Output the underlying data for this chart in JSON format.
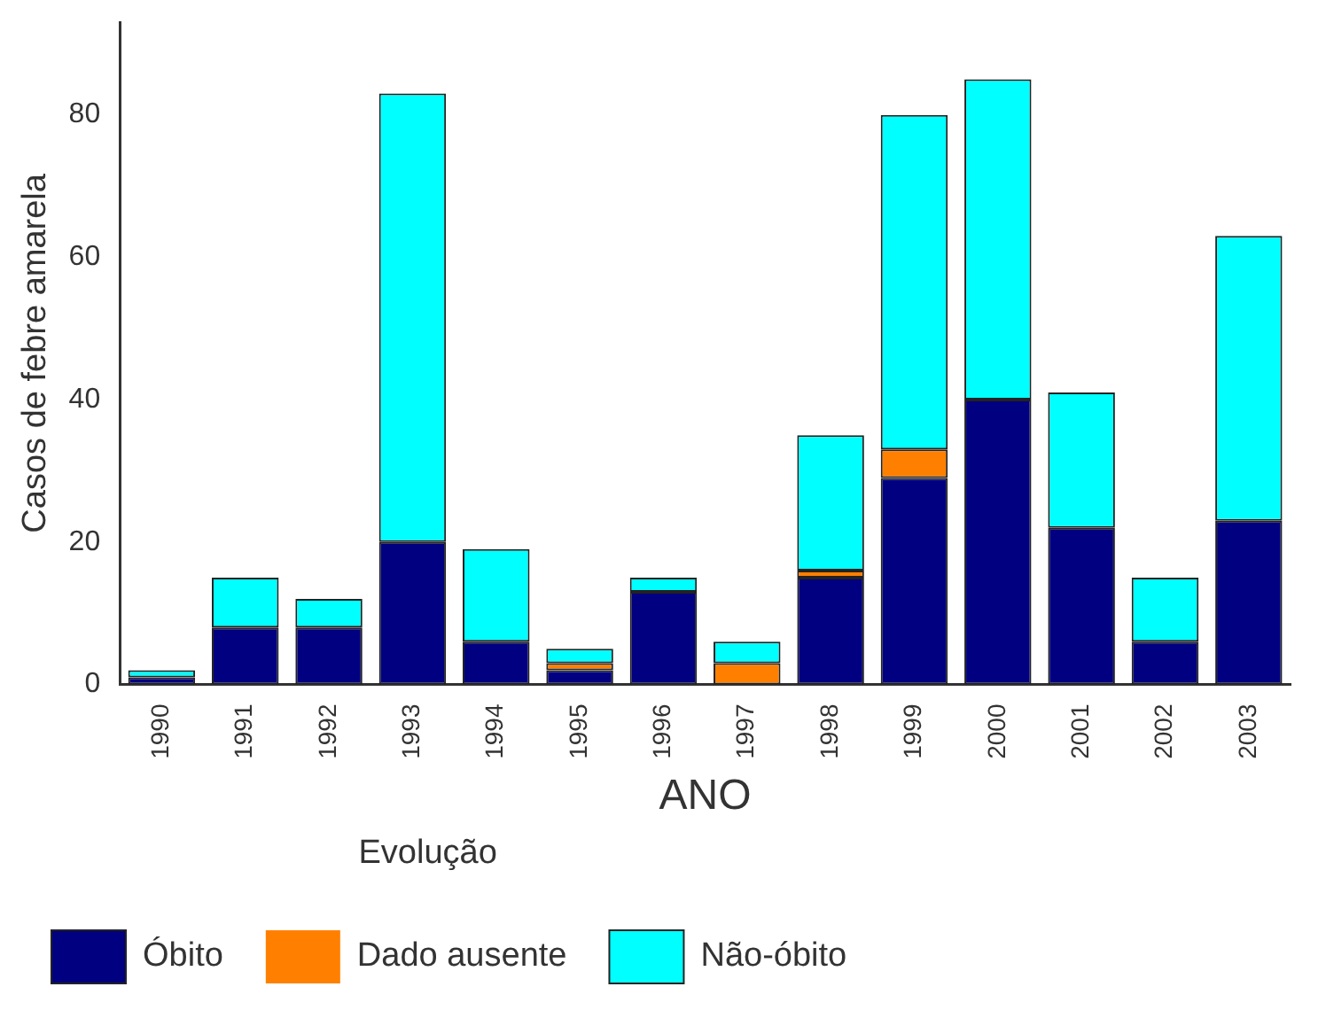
{
  "chart_data": {
    "type": "bar",
    "stacked": true,
    "xlabel": "ANO",
    "ylabel": "Casos de febre amarela",
    "legend_title": "Evolução",
    "legend": "bottom",
    "grid": false,
    "categories": [
      "1990",
      "1991",
      "1992",
      "1993",
      "1994",
      "1995",
      "1996",
      "1997",
      "1998",
      "1999",
      "2000",
      "2001",
      "2002",
      "2003"
    ],
    "series": [
      {
        "name": "Óbito",
        "color": "#000080",
        "values": [
          1,
          8,
          8,
          20,
          6,
          2,
          13,
          0,
          15,
          29,
          40,
          22,
          6,
          23
        ]
      },
      {
        "name": "Dado ausente",
        "color": "#ff8000",
        "values": [
          0,
          0,
          0,
          0,
          0,
          1,
          0,
          3,
          1,
          4,
          0,
          0,
          0,
          0
        ]
      },
      {
        "name": "Não-óbito",
        "color": "#00ffff",
        "values": [
          1,
          7,
          4,
          63,
          13,
          2,
          2,
          3,
          19,
          47,
          45,
          19,
          9,
          40
        ]
      }
    ],
    "ylim": [
      0,
      93
    ],
    "yticks": [
      0,
      20,
      40,
      60,
      80
    ]
  }
}
